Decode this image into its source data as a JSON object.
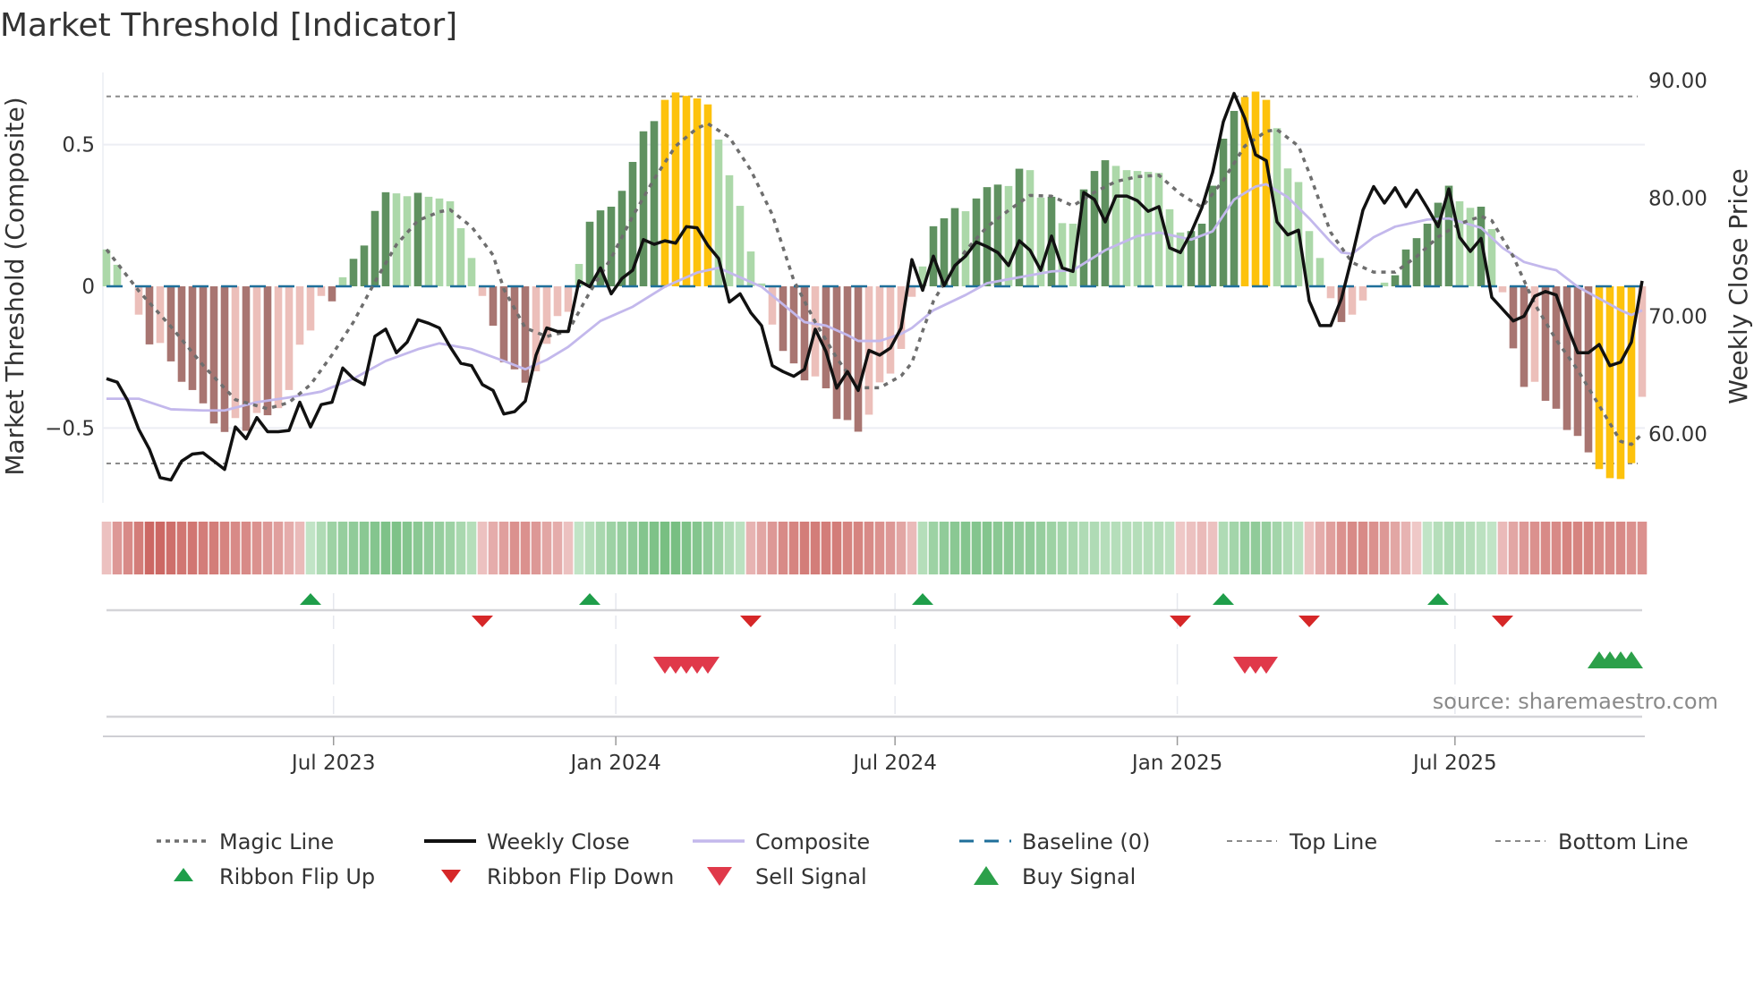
{
  "title": "Market Threshold [Indicator]",
  "source": "source: sharemaestro.com",
  "chart_data": {
    "type": "bar",
    "title": "Market Threshold [Indicator]",
    "xlabel": "",
    "ylabel": "Market Threshold (Composite)",
    "ylabel_right": "Weekly Close Price",
    "start_date": "2023-02-03",
    "interval_days": 7,
    "ylim": [
      -0.77,
      0.77
    ],
    "ylim_right": [
      54.5,
      93.5
    ],
    "y_ticks": [
      {
        "v": 0.5,
        "label": "0.5"
      },
      {
        "v": 0,
        "label": "0"
      },
      {
        "v": -0.5,
        "label": "−0.5"
      }
    ],
    "y_ticks_right": [
      {
        "v": 90,
        "label": "90.00"
      },
      {
        "v": 80,
        "label": "80.00"
      },
      {
        "v": 70,
        "label": "70.00"
      },
      {
        "v": 60,
        "label": "60.00"
      }
    ],
    "x_ticks": [
      {
        "date": "2023-07-01",
        "label": "Jul 2023"
      },
      {
        "date": "2024-01-01",
        "label": "Jan 2024"
      },
      {
        "date": "2024-07-01",
        "label": "Jul 2024"
      },
      {
        "date": "2025-01-01",
        "label": "Jan 2025"
      },
      {
        "date": "2025-07-01",
        "label": "Jul 2025"
      }
    ],
    "top_line": 0.67,
    "bottom_line": -0.625,
    "baseline": 0,
    "colors": {
      "G": "#5f9160",
      "g": "#acd8a9",
      "R": "#a87571",
      "r": "#ecbfba",
      "Y": "#fdc20c",
      "close": "#111111",
      "composite": "#c3b8ec",
      "magic": "#6e6e6e",
      "baseline": "#1f6f9a",
      "threshold": "#8a8a8a",
      "flip_up": "#1f9e4a",
      "flip_down": "#d62728",
      "sell": "#e0394a",
      "buy": "#2ca04a"
    },
    "histogram": [
      0.13,
      0.076,
      0,
      -0.1,
      -0.205,
      -0.2,
      -0.265,
      -0.337,
      -0.366,
      -0.413,
      -0.484,
      -0.514,
      -0.465,
      -0.51,
      -0.447,
      -0.455,
      -0.43,
      -0.366,
      -0.206,
      -0.156,
      -0.034,
      -0.053,
      0.032,
      0.097,
      0.144,
      0.266,
      0.332,
      0.328,
      0.318,
      0.33,
      0.316,
      0.31,
      0.3,
      0.205,
      0.1,
      -0.034,
      -0.139,
      -0.268,
      -0.293,
      -0.34,
      -0.3,
      -0.203,
      -0.105,
      -0.09,
      0.079,
      0.228,
      0.268,
      0.281,
      0.337,
      0.439,
      0.547,
      0.583,
      0.658,
      0.684,
      0.672,
      0.663,
      0.642,
      0.518,
      0.392,
      0.284,
      0.123,
      0.01,
      -0.135,
      -0.228,
      -0.272,
      -0.332,
      -0.318,
      -0.36,
      -0.468,
      -0.472,
      -0.513,
      -0.453,
      -0.339,
      -0.308,
      -0.221,
      -0.037,
      0.07,
      0.212,
      0.24,
      0.276,
      0.265,
      0.31,
      0.35,
      0.359,
      0.354,
      0.415,
      0.41,
      0.313,
      0.316,
      0.223,
      0.221,
      0.342,
      0.407,
      0.445,
      0.425,
      0.41,
      0.407,
      0.404,
      0.4,
      0.272,
      0.19,
      0.195,
      0.221,
      0.355,
      0.521,
      0.619,
      0.668,
      0.687,
      0.658,
      0.558,
      0.416,
      0.368,
      0.195,
      0.1,
      -0.042,
      -0.126,
      -0.1,
      -0.05,
      0,
      0.013,
      0.039,
      0.13,
      0.17,
      0.221,
      0.295,
      0.355,
      0.3,
      0.277,
      0.281,
      0.202,
      -0.021,
      -0.219,
      -0.355,
      -0.337,
      -0.404,
      -0.432,
      -0.507,
      -0.528,
      -0.586,
      -0.645,
      -0.677,
      -0.68,
      -0.624,
      -0.39
    ],
    "histogram_colors": [
      "g",
      "g",
      "g",
      "r",
      "R",
      "r",
      "R",
      "R",
      "R",
      "R",
      "R",
      "R",
      "r",
      "R",
      "r",
      "R",
      "r",
      "r",
      "r",
      "r",
      "r",
      "R",
      "g",
      "G",
      "G",
      "G",
      "G",
      "g",
      "g",
      "G",
      "g",
      "g",
      "g",
      "g",
      "g",
      "r",
      "R",
      "R",
      "R",
      "R",
      "r",
      "r",
      "r",
      "r",
      "g",
      "G",
      "G",
      "G",
      "G",
      "G",
      "G",
      "G",
      "Y",
      "Y",
      "Y",
      "Y",
      "Y",
      "g",
      "g",
      "g",
      "g",
      "g",
      "r",
      "R",
      "R",
      "R",
      "r",
      "R",
      "R",
      "R",
      "R",
      "r",
      "r",
      "r",
      "r",
      "r",
      "g",
      "G",
      "G",
      "G",
      "g",
      "G",
      "G",
      "G",
      "g",
      "G",
      "g",
      "g",
      "G",
      "g",
      "g",
      "G",
      "G",
      "G",
      "g",
      "g",
      "g",
      "g",
      "g",
      "g",
      "g",
      "G",
      "G",
      "G",
      "G",
      "G",
      "Y",
      "Y",
      "Y",
      "g",
      "g",
      "g",
      "g",
      "g",
      "r",
      "R",
      "r",
      "r",
      "g",
      "g",
      "G",
      "G",
      "G",
      "G",
      "G",
      "G",
      "g",
      "g",
      "G",
      "g",
      "r",
      "R",
      "R",
      "r",
      "R",
      "R",
      "R",
      "R",
      "R",
      "Y",
      "Y",
      "Y",
      "Y",
      "r"
    ],
    "weekly_close": [
      64.7,
      64.4,
      62.8,
      60.4,
      58.7,
      56.3,
      56.1,
      57.7,
      58.3,
      58.4,
      57.7,
      57.0,
      60.6,
      59.6,
      61.4,
      60.2,
      60.2,
      60.3,
      62.7,
      60.6,
      62.5,
      62.7,
      65.6,
      64.7,
      64.2,
      68.3,
      68.9,
      66.9,
      67.8,
      69.7,
      69.4,
      69.0,
      67.4,
      66.0,
      65.8,
      64.2,
      63.7,
      61.7,
      61.9,
      62.8,
      66.7,
      69.0,
      68.7,
      68.7,
      73.0,
      72.5,
      74.1,
      71.9,
      73.2,
      73.9,
      76.5,
      76.1,
      76.4,
      76.2,
      77.6,
      77.5,
      76.0,
      74.9,
      71.2,
      71.9,
      70.3,
      69.2,
      65.8,
      65.3,
      64.9,
      65.5,
      68.9,
      67.0,
      63.9,
      65.3,
      63.7,
      67.1,
      66.7,
      67.3,
      69.0,
      74.8,
      72.2,
      75.1,
      72.6,
      74.3,
      75.1,
      76.3,
      75.9,
      75.4,
      74.3,
      76.4,
      75.6,
      73.9,
      76.8,
      74.1,
      73.8,
      80.5,
      79.9,
      78.0,
      80.2,
      80.2,
      79.8,
      78.9,
      79.3,
      75.8,
      75.4,
      77.1,
      79.2,
      82.2,
      86.5,
      88.9,
      86.8,
      83.7,
      83.2,
      78.0,
      76.9,
      77.3,
      71.3,
      69.2,
      69.2,
      71.5,
      75.1,
      79.0,
      81.0,
      79.6,
      80.9,
      79.3,
      80.7,
      79.2,
      77.6,
      80.8,
      76.7,
      75.5,
      76.6,
      71.6,
      70.6,
      69.6,
      70.0,
      71.7,
      72.1,
      71.8,
      69.2,
      66.9,
      66.9,
      67.6,
      65.8,
      66.1,
      67.8,
      73.0
    ],
    "composite": [
      [
        0,
        63.0
      ],
      [
        3,
        63.0
      ],
      [
        6,
        62.1
      ],
      [
        9,
        62.0
      ],
      [
        11,
        62.0
      ],
      [
        14,
        62.7
      ],
      [
        17,
        63.1
      ],
      [
        20,
        63.6
      ],
      [
        23,
        64.7
      ],
      [
        26,
        66.2
      ],
      [
        29,
        67.2
      ],
      [
        31,
        67.7
      ],
      [
        34,
        67.2
      ],
      [
        37,
        66.2
      ],
      [
        39,
        65.5
      ],
      [
        41,
        66.3
      ],
      [
        43,
        67.4
      ],
      [
        46,
        69.6
      ],
      [
        49,
        70.8
      ],
      [
        52,
        72.5
      ],
      [
        55,
        73.7
      ],
      [
        57,
        74.1
      ],
      [
        59,
        73.3
      ],
      [
        61,
        72.5
      ],
      [
        63,
        71.0
      ],
      [
        65,
        69.5
      ],
      [
        67,
        69.2
      ],
      [
        69,
        68.4
      ],
      [
        70,
        67.9
      ],
      [
        72,
        67.9
      ],
      [
        74,
        68.5
      ],
      [
        75,
        69.0
      ],
      [
        77,
        70.5
      ],
      [
        80,
        71.8
      ],
      [
        82,
        72.8
      ],
      [
        85,
        73.3
      ],
      [
        88,
        73.8
      ],
      [
        90,
        73.9
      ],
      [
        93,
        75.6
      ],
      [
        96,
        76.8
      ],
      [
        98,
        77.1
      ],
      [
        101,
        76.5
      ],
      [
        103,
        77.2
      ],
      [
        105,
        79.9
      ],
      [
        107,
        81.0
      ],
      [
        108,
        81.2
      ],
      [
        110,
        80.1
      ],
      [
        112,
        78.3
      ],
      [
        114,
        76.3
      ],
      [
        115,
        75.4
      ],
      [
        116,
        75.3
      ],
      [
        118,
        76.7
      ],
      [
        120,
        77.6
      ],
      [
        123,
        78.2
      ],
      [
        125,
        78.3
      ],
      [
        128,
        77.5
      ],
      [
        130,
        75.8
      ],
      [
        132,
        74.6
      ],
      [
        134,
        74.1
      ],
      [
        135,
        73.9
      ],
      [
        137,
        72.5
      ],
      [
        139,
        71.5
      ],
      [
        141,
        70.5
      ],
      [
        142,
        70.1
      ],
      [
        143,
        70.5
      ]
    ],
    "magic_line": [
      [
        0,
        0.13
      ],
      [
        3,
        -0.016
      ],
      [
        6,
        -0.142
      ],
      [
        9,
        -0.279
      ],
      [
        12,
        -0.4
      ],
      [
        15,
        -0.432
      ],
      [
        17,
        -0.41
      ],
      [
        19,
        -0.347
      ],
      [
        21,
        -0.242
      ],
      [
        23,
        -0.126
      ],
      [
        25,
        0.016
      ],
      [
        27,
        0.147
      ],
      [
        29,
        0.232
      ],
      [
        31,
        0.263
      ],
      [
        32,
        0.27
      ],
      [
        34,
        0.21
      ],
      [
        36,
        0.11
      ],
      [
        37,
        -0.01
      ],
      [
        39,
        -0.147
      ],
      [
        41,
        -0.177
      ],
      [
        43,
        -0.158
      ],
      [
        45,
        -0.021
      ],
      [
        47,
        0.1
      ],
      [
        49,
        0.247
      ],
      [
        51,
        0.379
      ],
      [
        53,
        0.495
      ],
      [
        55,
        0.558
      ],
      [
        56,
        0.574
      ],
      [
        58,
        0.526
      ],
      [
        60,
        0.41
      ],
      [
        62,
        0.253
      ],
      [
        64,
        0.021
      ],
      [
        66,
        -0.126
      ],
      [
        68,
        -0.253
      ],
      [
        70,
        -0.358
      ],
      [
        72,
        -0.358
      ],
      [
        74,
        -0.316
      ],
      [
        75,
        -0.27
      ],
      [
        76,
        -0.158
      ],
      [
        77,
        -0.053
      ],
      [
        78,
        0.011
      ],
      [
        80,
        0.126
      ],
      [
        82,
        0.21
      ],
      [
        84,
        0.268
      ],
      [
        86,
        0.321
      ],
      [
        88,
        0.318
      ],
      [
        90,
        0.284
      ],
      [
        92,
        0.332
      ],
      [
        94,
        0.37
      ],
      [
        96,
        0.387
      ],
      [
        98,
        0.392
      ],
      [
        100,
        0.326
      ],
      [
        102,
        0.279
      ],
      [
        104,
        0.374
      ],
      [
        106,
        0.495
      ],
      [
        108,
        0.547
      ],
      [
        109,
        0.553
      ],
      [
        111,
        0.495
      ],
      [
        112,
        0.4
      ],
      [
        114,
        0.19
      ],
      [
        116,
        0.084
      ],
      [
        118,
        0.05
      ],
      [
        120,
        0.05
      ],
      [
        122,
        0.105
      ],
      [
        124,
        0.174
      ],
      [
        126,
        0.221
      ],
      [
        128,
        0.247
      ],
      [
        129,
        0.232
      ],
      [
        131,
        0.105
      ],
      [
        133,
        -0.063
      ],
      [
        135,
        -0.189
      ],
      [
        137,
        -0.295
      ],
      [
        139,
        -0.421
      ],
      [
        141,
        -0.547
      ],
      [
        142,
        -0.558
      ],
      [
        143,
        -0.521
      ]
    ],
    "ribbon": [
      -0.2,
      -0.5,
      -0.6,
      -0.7,
      -0.85,
      -0.85,
      -0.8,
      -0.75,
      -0.75,
      -0.7,
      -0.7,
      -0.65,
      -0.6,
      -0.6,
      -0.55,
      -0.5,
      -0.45,
      -0.35,
      -0.25,
      0.2,
      0.35,
      0.5,
      0.55,
      0.6,
      0.65,
      0.7,
      0.75,
      0.75,
      0.7,
      0.65,
      0.6,
      0.55,
      0.5,
      0.4,
      0.3,
      -0.2,
      -0.35,
      -0.45,
      -0.55,
      -0.55,
      -0.5,
      -0.4,
      -0.35,
      -0.2,
      0.2,
      0.3,
      0.4,
      0.5,
      0.55,
      0.6,
      0.7,
      0.75,
      0.8,
      0.8,
      0.75,
      0.7,
      0.6,
      0.5,
      0.35,
      0.25,
      -0.3,
      -0.4,
      -0.5,
      -0.6,
      -0.65,
      -0.7,
      -0.7,
      -0.7,
      -0.7,
      -0.65,
      -0.65,
      -0.6,
      -0.55,
      -0.5,
      -0.4,
      -0.25,
      0.3,
      0.5,
      0.6,
      0.65,
      0.7,
      0.7,
      0.7,
      0.65,
      0.65,
      0.6,
      0.6,
      0.55,
      0.5,
      0.45,
      0.4,
      0.35,
      0.35,
      0.3,
      0.3,
      0.3,
      0.3,
      0.3,
      0.3,
      0.25,
      -0.15,
      -0.2,
      -0.25,
      -0.2,
      0.35,
      0.45,
      0.55,
      0.6,
      0.55,
      0.45,
      0.35,
      0.25,
      -0.2,
      -0.35,
      -0.45,
      -0.55,
      -0.6,
      -0.6,
      -0.55,
      -0.5,
      -0.4,
      -0.3,
      -0.15,
      0.2,
      0.3,
      0.35,
      0.35,
      0.3,
      0.25,
      0.2,
      -0.25,
      -0.4,
      -0.5,
      -0.55,
      -0.6,
      -0.6,
      -0.65,
      -0.65,
      -0.65,
      -0.6,
      -0.6,
      -0.6,
      -0.55,
      -0.55
    ],
    "ribbon_flip_up": [
      19,
      45,
      76,
      104,
      124
    ],
    "ribbon_flip_down": [
      35,
      60,
      100,
      112,
      130
    ],
    "sell_signals": [
      52,
      53,
      54,
      55,
      56,
      106,
      107,
      108
    ],
    "buy_signals": [
      139,
      140,
      141,
      142
    ],
    "legend": [
      {
        "key": "magic",
        "label": "Magic Line"
      },
      {
        "key": "close",
        "label": "Weekly Close"
      },
      {
        "key": "composite",
        "label": "Composite"
      },
      {
        "key": "baseline",
        "label": "Baseline (0)"
      },
      {
        "key": "top",
        "label": "Top Line"
      },
      {
        "key": "bottom",
        "label": "Bottom Line"
      },
      {
        "key": "flip_up",
        "label": "Ribbon Flip Up"
      },
      {
        "key": "flip_down",
        "label": "Ribbon Flip Down"
      },
      {
        "key": "sell",
        "label": "Sell Signal"
      },
      {
        "key": "buy",
        "label": "Buy Signal"
      }
    ],
    "legend_position": "bottom"
  }
}
